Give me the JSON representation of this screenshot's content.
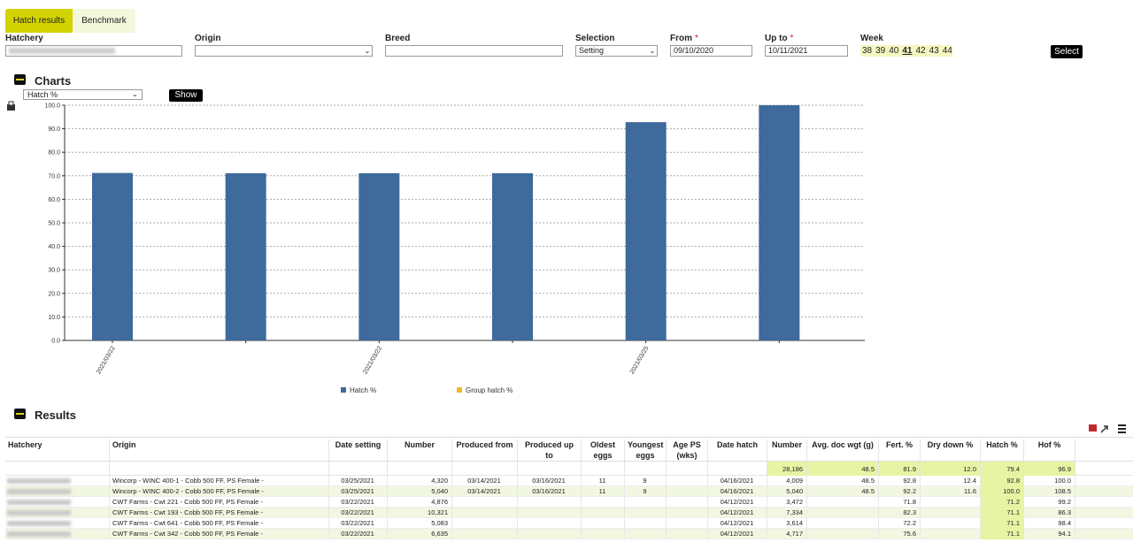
{
  "tabs": [
    "Hatch results",
    "Benchmark"
  ],
  "filters": [
    {
      "label": "Hatchery"
    },
    {
      "label": "Origin"
    },
    {
      "label": "Breed"
    },
    {
      "label": "Selection",
      "value": "Setting"
    },
    {
      "label": "From",
      "required": "*",
      "value": "09/10/2020"
    },
    {
      "label": "Up to",
      "required": "*",
      "value": "10/11/2021"
    },
    {
      "label": "Week"
    }
  ],
  "weeks": [
    {
      "label": "38"
    },
    {
      "label": "39"
    },
    {
      "label": "40"
    },
    {
      "label": "41",
      "selected": true
    },
    {
      "label": "42"
    },
    {
      "label": "43"
    },
    {
      "label": "44"
    }
  ],
  "select_button": "Select",
  "charts": {
    "title": "Charts",
    "dropdown": "Hatch %",
    "button": "Show"
  },
  "chart_data": {
    "type": "bar",
    "categories": [
      "2021/03/22",
      null,
      "2021/03/22",
      null,
      "2021/03/25",
      null
    ],
    "series": [
      {
        "name": "Hatch %",
        "color": "#3e6a9c",
        "values": [
          71.2,
          71.1,
          71.1,
          71.1,
          92.8,
          100.0
        ]
      },
      {
        "name": "Group hatch %",
        "color": "#f3b730",
        "values": [
          null,
          null,
          null,
          null,
          null,
          null
        ]
      }
    ],
    "ylim": [
      0,
      100
    ],
    "yticks": [
      {
        "value": 0,
        "label": "0.0"
      },
      {
        "value": 10,
        "label": "10.0"
      },
      {
        "value": 20,
        "label": "20.0"
      },
      {
        "value": 30,
        "label": "30.0"
      },
      {
        "value": 40,
        "label": "40.0"
      },
      {
        "value": 50,
        "label": "50.0"
      },
      {
        "value": 60,
        "label": "60.0"
      },
      {
        "value": 70,
        "label": "70.0"
      },
      {
        "value": 80,
        "label": "80.0"
      },
      {
        "value": 90,
        "label": "90.0"
      },
      {
        "value": 100,
        "label": "100.0"
      }
    ],
    "grid": true
  },
  "results": {
    "title": "Results"
  },
  "table": {
    "columns": [
      "Hatchery",
      "Origin",
      "Date setting",
      "Number",
      "Produced from",
      "Produced up to",
      "Oldest eggs",
      "Youngest eggs",
      "Age PS (wks)",
      "Date hatch",
      "Number",
      "Avg. doc wgt (g)",
      "Fert. %",
      "Dry down %",
      "Hatch %",
      "Hof %"
    ],
    "totals": [
      "28,186",
      "48.5",
      "81.9",
      "12.0",
      "79.4",
      "96.9"
    ],
    "rows": [
      [
        null,
        "Wincorp - WINC 400-1 - Cobb 500 FF, PS Female -",
        "03/25/2021",
        "4,320",
        "03/14/2021",
        "03/16/2021",
        "11",
        "9",
        null,
        "04/16/2021",
        "4,009",
        "48.5",
        "92.8",
        "12.4",
        "92.8",
        "100.0"
      ],
      [
        null,
        "Wincorp - WINC 400-2 - Cobb 500 FF, PS Female -",
        "03/25/2021",
        "5,040",
        "03/14/2021",
        "03/16/2021",
        "11",
        "9",
        null,
        "04/16/2021",
        "5,040",
        "48.5",
        "92.2",
        "11.6",
        "100.0",
        "108.5"
      ],
      [
        null,
        "CWT Farms - Cwt 221 - Cobb 500 FF, PS Female -",
        "03/22/2021",
        "4,876",
        null,
        null,
        null,
        null,
        null,
        "04/12/2021",
        "3,472",
        null,
        "71.8",
        null,
        "71.2",
        "99.2"
      ],
      [
        null,
        "CWT Farms - Cwt 193 - Cobb 500 FF, PS Female -",
        "03/22/2021",
        "10,321",
        null,
        null,
        null,
        null,
        null,
        "04/12/2021",
        "7,334",
        null,
        "82.3",
        null,
        "71.1",
        "86.3"
      ],
      [
        null,
        "CWT Farms - Cwt 641 - Cobb 500 FF, PS Female -",
        "03/22/2021",
        "5,083",
        null,
        null,
        null,
        null,
        null,
        "04/12/2021",
        "3,614",
        null,
        "72.2",
        null,
        "71.1",
        "98.4"
      ],
      [
        null,
        "CWT Farms - Cwt 342 - Cobb 500 FF, PS Female -",
        "03/22/2021",
        "6,635",
        null,
        null,
        null,
        null,
        null,
        "04/12/2021",
        "4,717",
        null,
        "75.6",
        null,
        "71.1",
        "94.1"
      ]
    ]
  }
}
